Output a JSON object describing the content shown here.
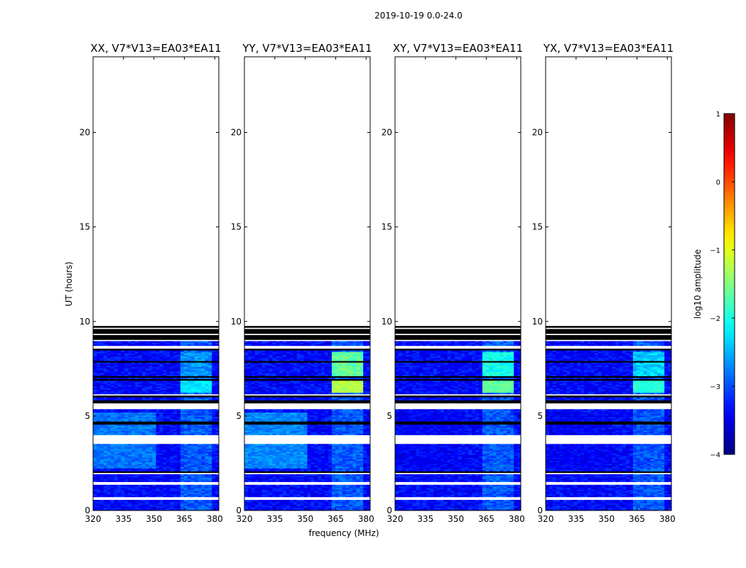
{
  "figure": {
    "suptitle": "2019-10-19 0.0-24.0"
  },
  "chart_data": {
    "type": "heatmap",
    "xlabel": "frequency (MHz)",
    "ylabel": "UT (hours)",
    "xlim": [
      320,
      382
    ],
    "ylim": [
      0,
      24
    ],
    "xticks": [
      "320",
      "335",
      "350",
      "365",
      "380"
    ],
    "xtick_values": [
      320,
      335,
      350,
      365,
      380
    ],
    "yticks": [
      "0",
      "5",
      "10",
      "15",
      "20"
    ],
    "ytick_values": [
      0,
      5,
      10,
      15,
      20
    ],
    "data_extent_hours": [
      0,
      9.7
    ],
    "rfi_band_MHz": [
      363,
      377
    ],
    "panels": [
      {
        "title": "XX, V7*V13=EA03*EA11",
        "rfi_peak_log10": -2.2,
        "low_band_log10": -2.7
      },
      {
        "title": "YY, V7*V13=EA03*EA11",
        "rfi_peak_log10": -1.2,
        "low_band_log10": -2.6
      },
      {
        "title": "XY, V7*V13=EA03*EA11",
        "rfi_peak_log10": -1.6,
        "low_band_log10": -3.3
      },
      {
        "title": "YX, V7*V13=EA03*EA11",
        "rfi_peak_log10": -1.9,
        "low_band_log10": -3.3
      }
    ],
    "colorbar": {
      "label": "log10 amplitude",
      "range": [
        -4,
        1
      ],
      "ticks": [
        "1",
        "0",
        "−1",
        "−2",
        "−3",
        "−4"
      ],
      "tick_values": [
        1,
        0,
        -1,
        -2,
        -3,
        -4
      ],
      "cmap": "jet"
    }
  }
}
